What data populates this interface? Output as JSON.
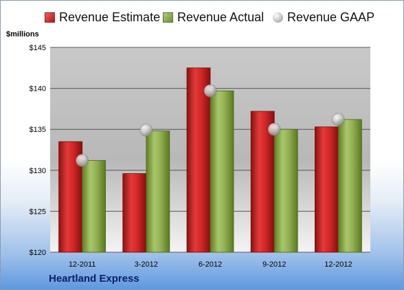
{
  "legend": {
    "estimate": "Revenue Estimate",
    "actual": "Revenue Actual",
    "gaap": "Revenue GAAP"
  },
  "unit_label": "$millions",
  "company": "Heartland Express",
  "colors": {
    "estimate": "#c81e1e",
    "actual": "#8fae4a",
    "gaap": "#c8c8c8"
  },
  "chart_data": {
    "type": "bar",
    "categories": [
      "12-2011",
      "3-2012",
      "6-2012",
      "9-2012",
      "12-2012"
    ],
    "series": [
      {
        "name": "Revenue Estimate",
        "values": [
          133.5,
          129.6,
          142.5,
          137.2,
          135.3
        ]
      },
      {
        "name": "Revenue Actual",
        "values": [
          131.2,
          134.8,
          139.7,
          135.0,
          136.2
        ]
      },
      {
        "name": "Revenue GAAP",
        "values": [
          131.2,
          134.9,
          139.7,
          135.0,
          136.2
        ]
      }
    ],
    "ylabel": "$millions",
    "ylim": [
      120,
      145
    ],
    "yticks": [
      "$120",
      "$125",
      "$130",
      "$135",
      "$140",
      "$145"
    ],
    "grid": true,
    "legend_position": "top"
  }
}
